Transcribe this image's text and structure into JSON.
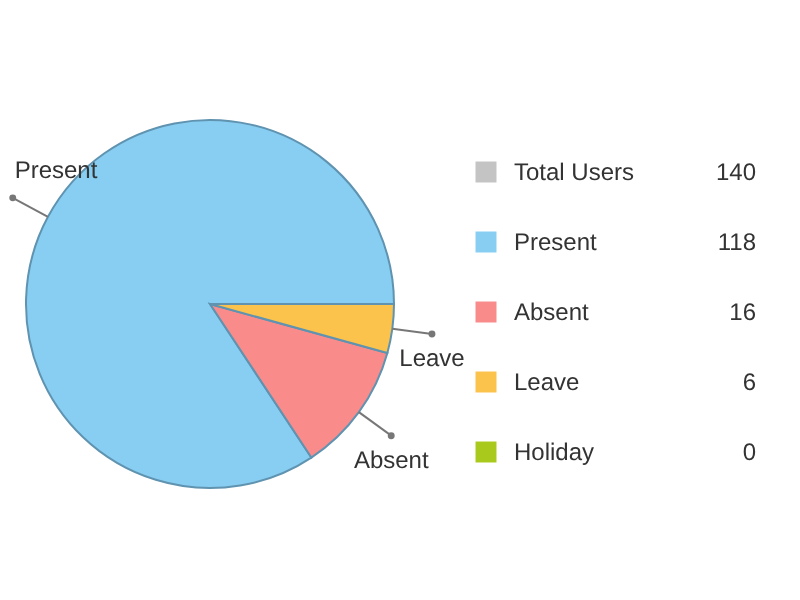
{
  "chart_data": {
    "type": "pie",
    "categories": [
      "Present",
      "Absent",
      "Leave",
      "Holiday"
    ],
    "values": [
      118,
      16,
      6,
      0
    ],
    "colors": [
      "#87cef2",
      "#f98b8b",
      "#fbc24c",
      "#a9c91c"
    ],
    "value_labels": [
      "118",
      "16",
      "6",
      "0"
    ],
    "legend": "right",
    "annotations": [
      "Total Users",
      "140"
    ]
  }
}
